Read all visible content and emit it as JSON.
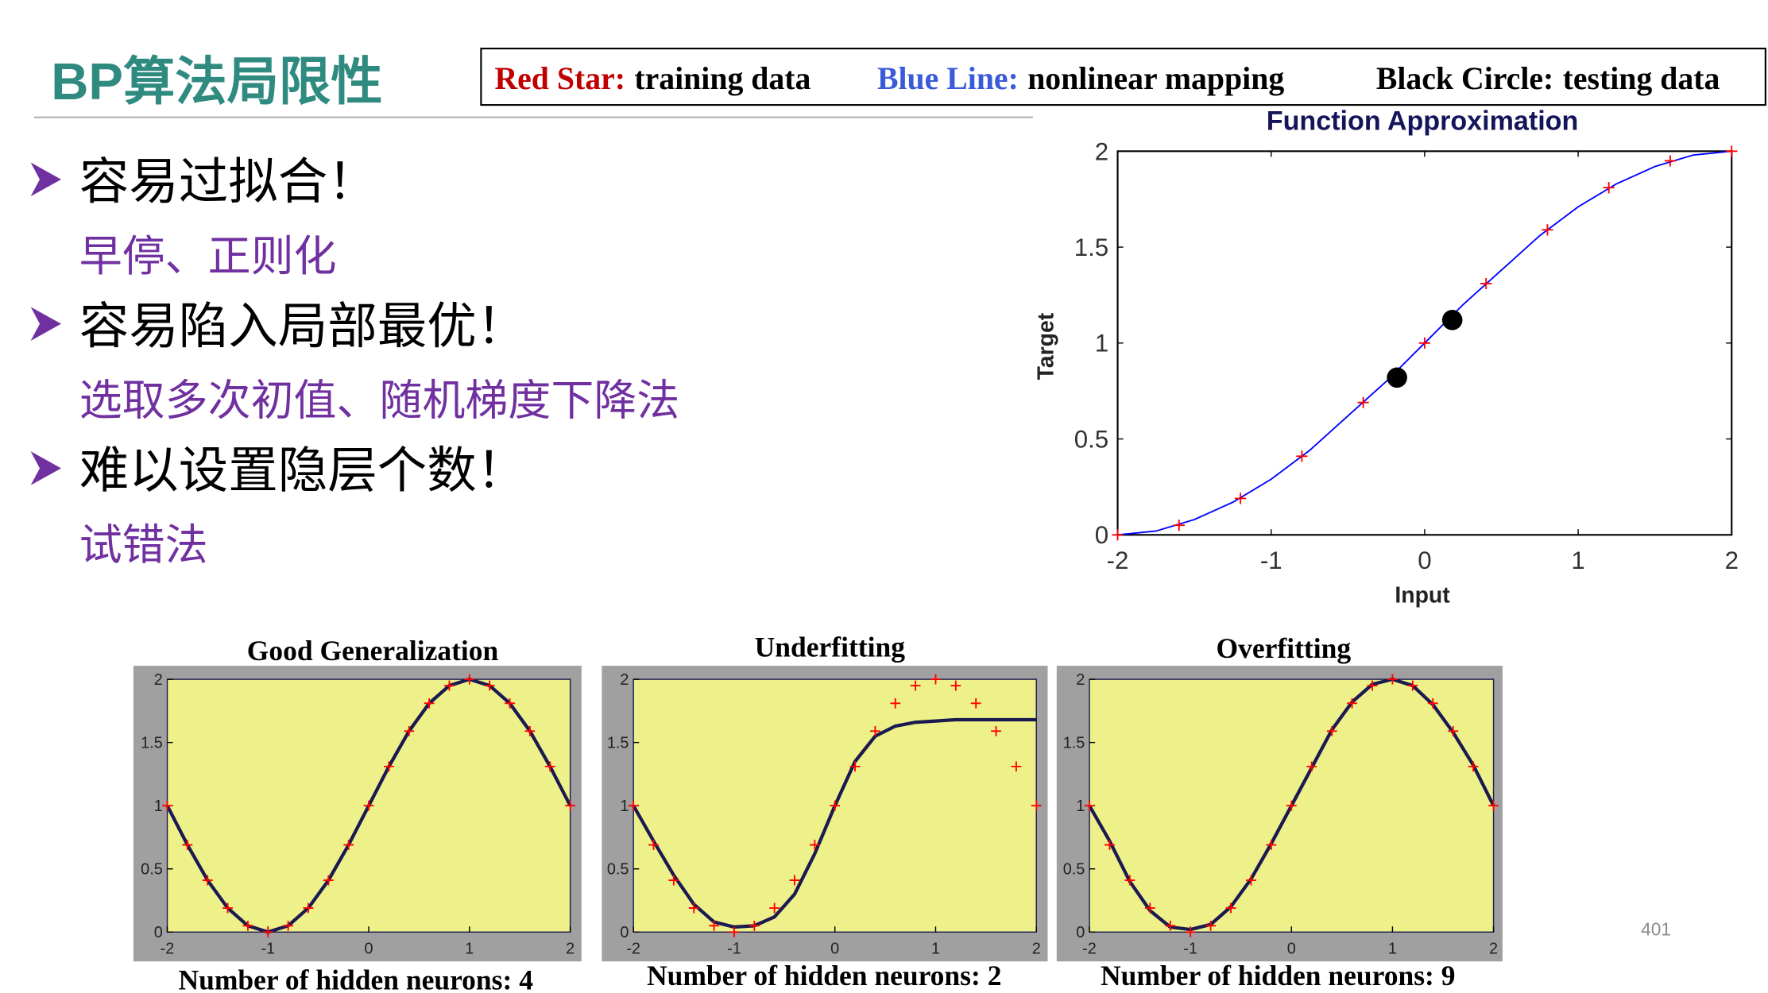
{
  "header": {
    "title": "BP算法局限性"
  },
  "legend": [
    {
      "key": "Red Star:",
      "text": "training data",
      "color": "#c00000"
    },
    {
      "key": "Blue Line:",
      "text": "nonlinear mapping",
      "color": "#3a5bd9"
    },
    {
      "key": "Black Circle:",
      "text": "testing data",
      "color": "#000000"
    }
  ],
  "bullets": [
    {
      "text": "容易过拟合！",
      "sub": "早停、正则化"
    },
    {
      "text": "容易陷入局部最优！",
      "sub": "选取多次初值、随机梯度下降法"
    },
    {
      "text": "难以设置隐层个数！",
      "sub": "试错法"
    }
  ],
  "page_number": "401",
  "chart_data": [
    {
      "type": "line",
      "title": "Function Approximation",
      "x_label": "Input",
      "y_label": "Target",
      "background": "#ffffff",
      "xlim": [
        -2,
        2
      ],
      "ylim": [
        0,
        2
      ],
      "xticks": [
        -2,
        -1,
        0,
        1,
        2
      ],
      "yticks": [
        0,
        0.5,
        1,
        1.5,
        2
      ],
      "series": [
        {
          "style": "line",
          "color": "#0000ff",
          "x": [
            -2,
            -1.75,
            -1.5,
            -1.25,
            -1,
            -0.75,
            -0.5,
            -0.25,
            0,
            0.25,
            0.5,
            0.75,
            1,
            1.25,
            1.5,
            1.75,
            2
          ],
          "values": [
            0,
            0.02,
            0.08,
            0.17,
            0.29,
            0.44,
            0.62,
            0.8,
            1,
            1.2,
            1.38,
            1.56,
            1.71,
            1.83,
            1.92,
            1.98,
            2
          ]
        },
        {
          "style": "plus",
          "color": "#ff0000",
          "x": [
            -2,
            -1.6,
            -1.2,
            -0.8,
            -0.4,
            0,
            0.4,
            0.8,
            1.2,
            1.6,
            2
          ],
          "values": [
            0,
            0.05,
            0.19,
            0.41,
            0.69,
            1,
            1.31,
            1.59,
            1.81,
            1.95,
            2
          ]
        },
        {
          "style": "dot",
          "color": "#000000",
          "x": [
            -0.18,
            0.18
          ],
          "values": [
            0.82,
            1.12
          ]
        }
      ]
    },
    {
      "type": "line",
      "title": "Good Generalization",
      "x_label": "Number of hidden neurons: 4",
      "background": "#eef08a",
      "xlim": [
        -2,
        2
      ],
      "ylim": [
        0,
        2
      ],
      "xticks": [
        -2,
        -1,
        0,
        1,
        2
      ],
      "yticks": [
        0,
        0.5,
        1,
        1.5,
        2
      ],
      "series": [
        {
          "style": "line",
          "color": "#1a1a50",
          "x": [
            -2,
            -1.8,
            -1.6,
            -1.4,
            -1.2,
            -1,
            -0.8,
            -0.6,
            -0.4,
            -0.2,
            0,
            0.2,
            0.4,
            0.6,
            0.8,
            1,
            1.2,
            1.4,
            1.6,
            1.8,
            2
          ],
          "values": [
            1,
            0.69,
            0.41,
            0.19,
            0.05,
            0,
            0.05,
            0.19,
            0.41,
            0.69,
            1,
            1.31,
            1.59,
            1.81,
            1.95,
            2,
            1.95,
            1.81,
            1.59,
            1.31,
            1
          ]
        },
        {
          "style": "plus",
          "color": "#ff0000",
          "x": [
            -2,
            -1.8,
            -1.6,
            -1.4,
            -1.2,
            -1,
            -0.8,
            -0.6,
            -0.4,
            -0.2,
            0,
            0.2,
            0.4,
            0.6,
            0.8,
            1,
            1.2,
            1.4,
            1.6,
            1.8,
            2
          ],
          "values": [
            1,
            0.69,
            0.41,
            0.19,
            0.05,
            0,
            0.05,
            0.19,
            0.41,
            0.69,
            1,
            1.31,
            1.59,
            1.81,
            1.95,
            2,
            1.95,
            1.81,
            1.59,
            1.31,
            1
          ]
        }
      ]
    },
    {
      "type": "line",
      "title": "Underfitting",
      "x_label": "Number of hidden neurons: 2",
      "background": "#eef08a",
      "xlim": [
        -2,
        2
      ],
      "ylim": [
        0,
        2
      ],
      "xticks": [
        -2,
        -1,
        0,
        1,
        2
      ],
      "yticks": [
        0,
        0.5,
        1,
        1.5,
        2
      ],
      "series": [
        {
          "style": "line",
          "color": "#1a1a50",
          "x": [
            -2,
            -1.8,
            -1.6,
            -1.4,
            -1.2,
            -1,
            -0.8,
            -0.6,
            -0.4,
            -0.2,
            0,
            0.2,
            0.4,
            0.6,
            0.8,
            1,
            1.2,
            1.4,
            1.6,
            1.8,
            2
          ],
          "values": [
            1,
            0.72,
            0.45,
            0.22,
            0.08,
            0.04,
            0.05,
            0.12,
            0.3,
            0.62,
            1,
            1.35,
            1.55,
            1.63,
            1.66,
            1.67,
            1.68,
            1.68,
            1.68,
            1.68,
            1.68
          ]
        },
        {
          "style": "plus",
          "color": "#ff0000",
          "x": [
            -2,
            -1.8,
            -1.6,
            -1.4,
            -1.2,
            -1,
            -0.8,
            -0.6,
            -0.4,
            -0.2,
            0,
            0.2,
            0.4,
            0.6,
            0.8,
            1,
            1.2,
            1.4,
            1.6,
            1.8,
            2
          ],
          "values": [
            1,
            0.69,
            0.41,
            0.19,
            0.05,
            0,
            0.05,
            0.19,
            0.41,
            0.69,
            1,
            1.31,
            1.59,
            1.81,
            1.95,
            2,
            1.95,
            1.81,
            1.59,
            1.31,
            1
          ]
        }
      ]
    },
    {
      "type": "line",
      "title": "Overfitting",
      "x_label": "Number of hidden neurons: 9",
      "background": "#eef08a",
      "xlim": [
        -2,
        2
      ],
      "ylim": [
        0,
        2
      ],
      "xticks": [
        -2,
        -1,
        0,
        1,
        2
      ],
      "yticks": [
        0,
        0.5,
        1,
        1.5,
        2
      ],
      "series": [
        {
          "style": "line",
          "color": "#1a1a50",
          "x": [
            -2,
            -1.8,
            -1.6,
            -1.4,
            -1.2,
            -1,
            -0.8,
            -0.6,
            -0.4,
            -0.2,
            0,
            0.2,
            0.4,
            0.6,
            0.8,
            1,
            1.2,
            1.4,
            1.6,
            1.8,
            2
          ],
          "values": [
            1,
            0.72,
            0.4,
            0.17,
            0.04,
            0.02,
            0.06,
            0.2,
            0.42,
            0.7,
            1,
            1.3,
            1.6,
            1.82,
            1.96,
            2,
            1.95,
            1.8,
            1.58,
            1.32,
            1
          ]
        },
        {
          "style": "plus",
          "color": "#ff0000",
          "x": [
            -2,
            -1.8,
            -1.6,
            -1.4,
            -1.2,
            -1,
            -0.8,
            -0.6,
            -0.4,
            -0.2,
            0,
            0.2,
            0.4,
            0.6,
            0.8,
            1,
            1.2,
            1.4,
            1.6,
            1.8,
            2
          ],
          "values": [
            1,
            0.69,
            0.41,
            0.19,
            0.05,
            0,
            0.05,
            0.19,
            0.41,
            0.69,
            1,
            1.31,
            1.59,
            1.81,
            1.95,
            2,
            1.95,
            1.81,
            1.59,
            1.31,
            1
          ]
        }
      ]
    }
  ]
}
